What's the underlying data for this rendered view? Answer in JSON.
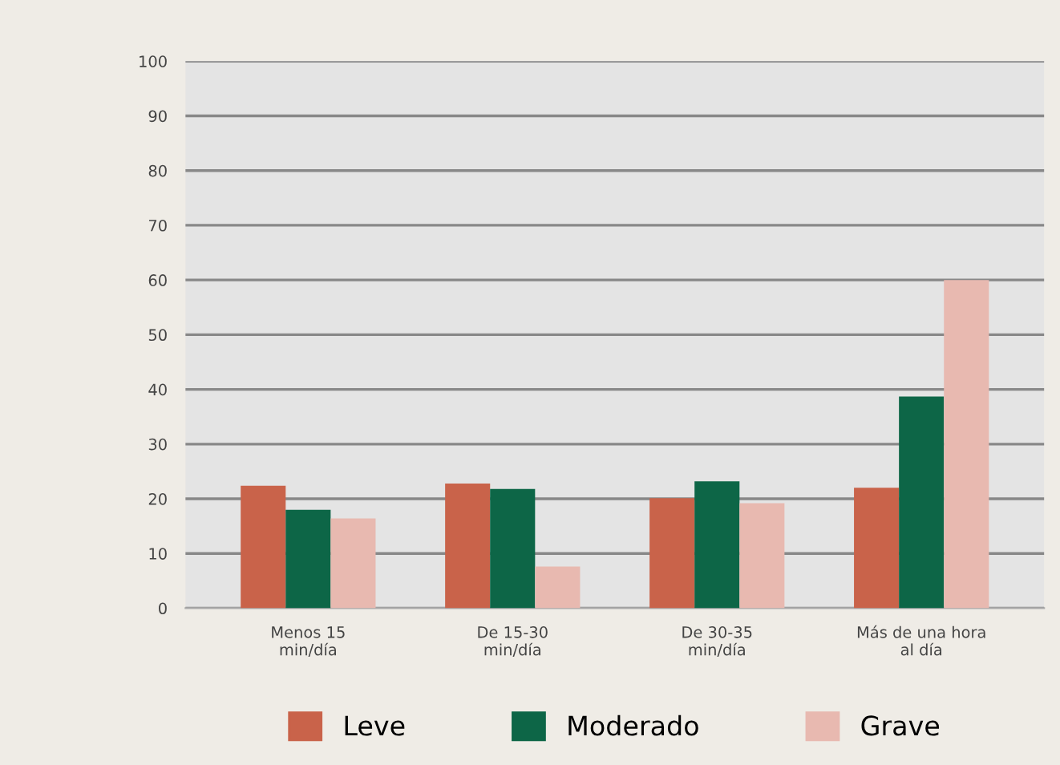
{
  "chart_data": {
    "type": "bar",
    "categories": [
      "Menos 15\nmin/día",
      "De 15-30\nmin/día",
      "De 30-35\nmin/día",
      "Más de una hora\nal día"
    ],
    "series": [
      {
        "name": "Leve",
        "color": "#c9634a",
        "values": [
          22.4,
          22.8,
          20.1,
          22.0
        ]
      },
      {
        "name": "Moderado",
        "color": "#0d6647",
        "values": [
          18.0,
          21.8,
          23.2,
          38.7
        ]
      },
      {
        "name": "Grave",
        "color": "#e8b9b0",
        "values": [
          16.4,
          7.6,
          19.2,
          60.0
        ]
      }
    ],
    "ylim": [
      0,
      100
    ],
    "yticks": [
      0,
      10,
      20,
      30,
      40,
      50,
      60,
      70,
      80,
      90,
      100
    ],
    "grid": "y",
    "legend": "bottom"
  }
}
